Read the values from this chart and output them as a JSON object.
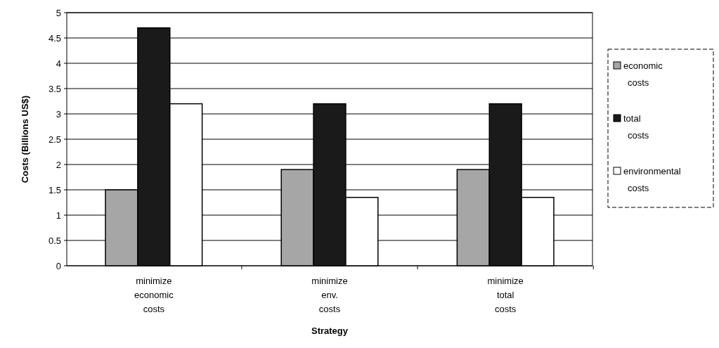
{
  "chart_data": {
    "type": "bar",
    "xlabel": "Strategy",
    "ylabel": "Costs  (Billions US$)",
    "categories": [
      "minimize economic costs",
      "minimize env. costs",
      "minimize total costs"
    ],
    "series": [
      {
        "name": "economic costs",
        "color": "#a6a6a6",
        "values": [
          1.5,
          1.9,
          1.9
        ]
      },
      {
        "name": "total costs",
        "color": "#1a1a1a",
        "values": [
          4.7,
          3.2,
          3.2
        ]
      },
      {
        "name": "environmental costs",
        "color": "#ffffff",
        "values": [
          3.2,
          1.35,
          1.35
        ]
      }
    ],
    "ylim": [
      0,
      5
    ],
    "yticks": [
      0,
      0.5,
      1,
      1.5,
      2,
      2.5,
      3,
      3.5,
      4,
      4.5,
      5
    ],
    "grid": "y",
    "legend": "right"
  }
}
